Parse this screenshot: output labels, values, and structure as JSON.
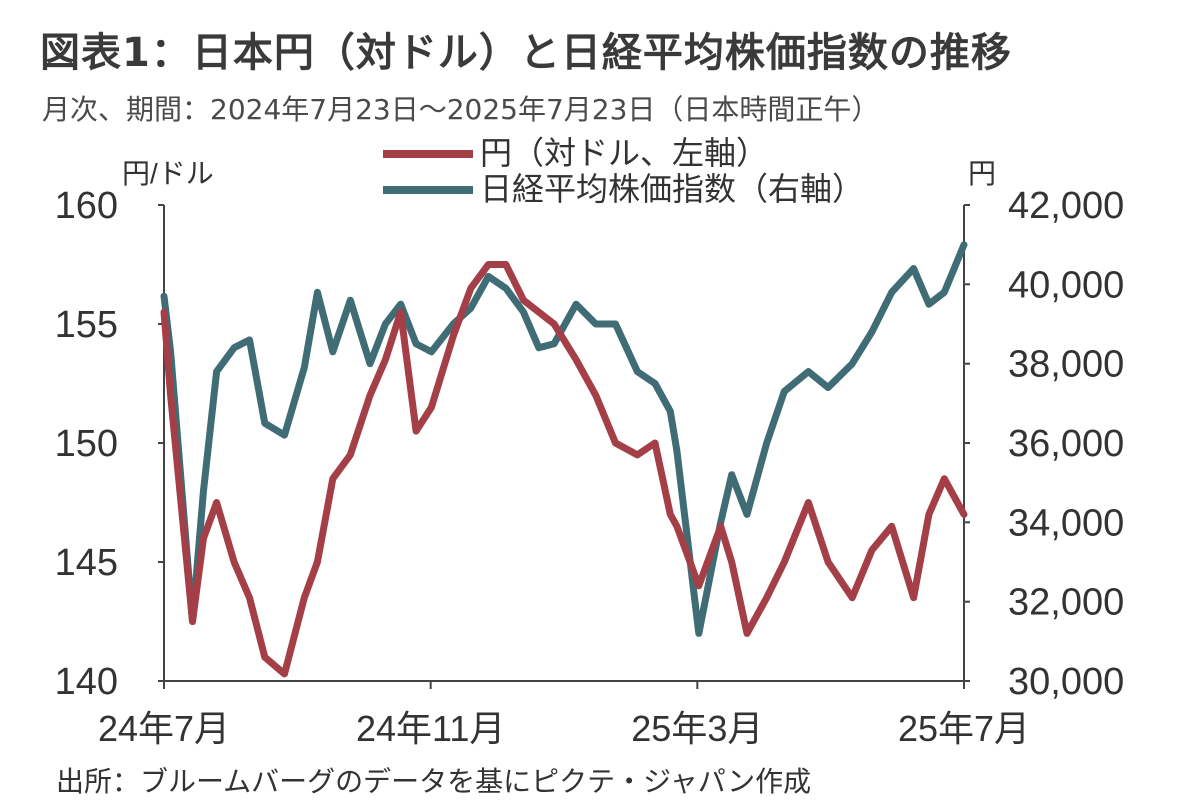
{
  "title": "図表1：日本円（対ドル）と日経平均株価指数の推移",
  "subtitle": "月次、期間：2024年7月23日～2025年7月23日（日本時間正午）",
  "source": "出所：ブルームバーグのデータを基にピクテ・ジャパン作成",
  "chart_data": {
    "type": "line",
    "left_axis_label": "円/ドル",
    "right_axis_label": "円",
    "left_ylim": [
      140,
      160
    ],
    "right_ylim": [
      30000,
      42000
    ],
    "left_ticks": [
      "160",
      "155",
      "150",
      "145",
      "140"
    ],
    "right_ticks": [
      "42,000",
      "40,000",
      "38,000",
      "36,000",
      "34,000",
      "32,000",
      "30,000"
    ],
    "x_ticks": [
      "24年7月",
      "24年11月",
      "25年3月",
      "25年7月"
    ],
    "x_range": [
      "2024-07-23",
      "2025-07-23"
    ],
    "x": [
      "2024-07-23",
      "2024-07-26",
      "2024-08-05",
      "2024-08-10",
      "2024-08-16",
      "2024-08-24",
      "2024-08-31",
      "2024-09-07",
      "2024-09-16",
      "2024-09-25",
      "2024-10-01",
      "2024-10-08",
      "2024-10-16",
      "2024-10-25",
      "2024-11-01",
      "2024-11-08",
      "2024-11-15",
      "2024-11-22",
      "2024-12-02",
      "2024-12-10",
      "2024-12-18",
      "2024-12-26",
      "2025-01-03",
      "2025-01-10",
      "2025-01-17",
      "2025-01-27",
      "2025-02-05",
      "2025-02-14",
      "2025-02-24",
      "2025-03-04",
      "2025-03-11",
      "2025-03-14",
      "2025-03-24",
      "2025-04-03",
      "2025-04-08",
      "2025-04-15",
      "2025-04-24",
      "2025-05-02",
      "2025-05-13",
      "2025-05-22",
      "2025-06-02",
      "2025-06-11",
      "2025-06-20",
      "2025-06-30",
      "2025-07-07",
      "2025-07-14",
      "2025-07-23"
    ],
    "series": [
      {
        "name": "円（対ドル、左軸）",
        "color": "#a43f47",
        "axis": "left",
        "values": [
          155.5,
          152.0,
          142.5,
          146.0,
          147.5,
          145.0,
          143.5,
          141.0,
          140.3,
          143.5,
          145.0,
          148.5,
          149.5,
          152.0,
          153.5,
          155.5,
          150.5,
          151.5,
          154.5,
          156.5,
          157.5,
          157.5,
          156.0,
          155.5,
          155.0,
          153.5,
          152.0,
          150.0,
          149.5,
          150.0,
          147.0,
          146.5,
          144.0,
          146.5,
          145.0,
          142.0,
          143.5,
          145.0,
          147.5,
          145.0,
          143.5,
          145.5,
          146.5,
          143.5,
          147.0,
          148.5,
          147.0
        ]
      },
      {
        "name": "日経平均株価指数（右軸）",
        "color": "#3f6c75",
        "axis": "right",
        "values": [
          39700,
          38300,
          31500,
          34800,
          37800,
          38400,
          38600,
          36500,
          36200,
          37900,
          39800,
          38300,
          39600,
          38000,
          39000,
          39500,
          38500,
          38300,
          39000,
          39400,
          40200,
          39900,
          39300,
          38400,
          38500,
          39500,
          39000,
          39000,
          37800,
          37500,
          36800,
          35800,
          31200,
          34000,
          35200,
          34200,
          36000,
          37300,
          37800,
          37400,
          38000,
          38800,
          39800,
          40400,
          39500,
          39800,
          41000
        ]
      }
    ],
    "legend_position": "top"
  }
}
